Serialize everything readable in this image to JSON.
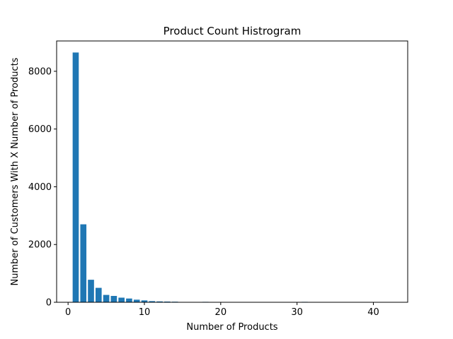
{
  "chart_data": {
    "type": "bar",
    "title": "Product Count Histrogram",
    "xlabel": "Number of Products",
    "ylabel": "Number of Customers With X Number of Products",
    "xlim": [
      -1.5,
      44.5
    ],
    "ylim": [
      0,
      9050
    ],
    "xticks": [
      0,
      10,
      20,
      30,
      40
    ],
    "yticks": [
      0,
      2000,
      4000,
      6000,
      8000
    ],
    "bar_color": "#1f77b4",
    "bar_width": 0.8,
    "grid": false,
    "x": [
      1,
      2,
      3,
      4,
      5,
      6,
      7,
      8,
      9,
      10,
      11,
      12,
      13,
      14,
      18,
      19,
      22,
      23,
      24,
      27,
      31
    ],
    "values": [
      8650,
      2700,
      780,
      500,
      255,
      220,
      160,
      130,
      90,
      65,
      40,
      30,
      25,
      20,
      15,
      10,
      12,
      10,
      8,
      6,
      15
    ]
  }
}
